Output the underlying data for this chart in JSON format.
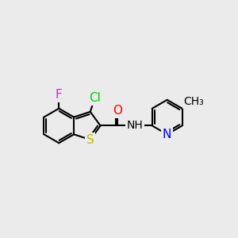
{
  "background_color": "#ebebeb",
  "bond_color": "#000000",
  "bond_width": 1.5,
  "atom_colors": {
    "S": "#c8b400",
    "N": "#0000ff",
    "O": "#ff0000",
    "Cl": "#00cc00",
    "F": "#ff00ff",
    "C": "#000000"
  },
  "label_fontsize": 11,
  "small_fontsize": 10
}
